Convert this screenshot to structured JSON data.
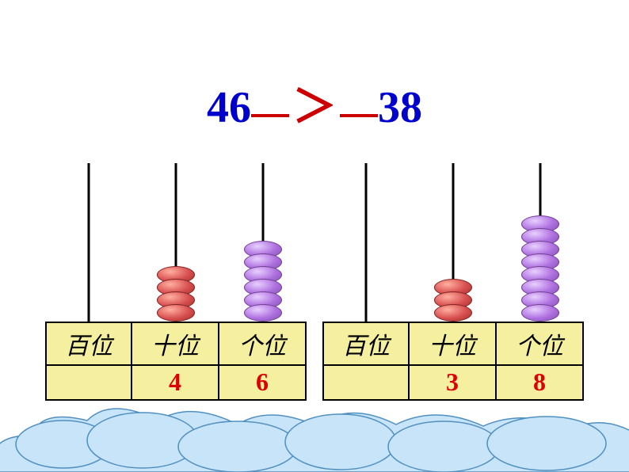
{
  "comparison": {
    "left_number": "46",
    "operator": "＞",
    "right_number": "38",
    "number_color": "#0000cc",
    "operator_color": "#cc0000",
    "underline_color": "#cc0000",
    "fontsize": 56
  },
  "abacus": {
    "rod_color": "#000000",
    "bead_colors": {
      "red": {
        "light": "#ffb0a0",
        "mid": "#d85050",
        "dark": "#a03028"
      },
      "purple": {
        "light": "#e8d0ff",
        "mid": "#b070e0",
        "dark": "#8050b0"
      }
    },
    "label_background": "#f5f0a0",
    "label_border": "#000000",
    "value_color": "#dd0000",
    "sets": [
      {
        "places": [
          {
            "label": "百位",
            "value": "",
            "bead_count": 0,
            "bead_color": "red"
          },
          {
            "label": "十位",
            "value": "4",
            "bead_count": 4,
            "bead_color": "red"
          },
          {
            "label": "个位",
            "value": "6",
            "bead_count": 6,
            "bead_color": "purple"
          }
        ]
      },
      {
        "places": [
          {
            "label": "百位",
            "value": "",
            "bead_count": 0,
            "bead_color": "red"
          },
          {
            "label": "十位",
            "value": "3",
            "bead_count": 3,
            "bead_color": "red"
          },
          {
            "label": "个位",
            "value": "8",
            "bead_count": 8,
            "bead_color": "purple"
          }
        ]
      }
    ]
  },
  "clouds": {
    "fill": "#c8e4f8",
    "stroke": "#5090c0"
  }
}
